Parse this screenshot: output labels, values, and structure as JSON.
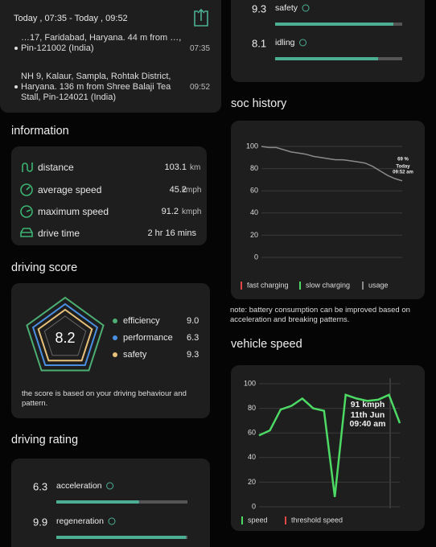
{
  "trip": {
    "time_range": "Today , 07:35 - Today , 09:52",
    "stops": [
      {
        "address": "…17, Faridabad, Haryana. 44 m from …, Pin-121002 (India)",
        "time": "07:35"
      },
      {
        "address": "NH 9, Kalaur, Sampla, Rohtak District, Haryana. 136 m from Shree Balaji Tea Stall, Pin-124021 (India)",
        "time": "09:52"
      }
    ]
  },
  "information": {
    "title": "information",
    "rows": [
      {
        "label": "distance",
        "value": "103.1",
        "unit": "km"
      },
      {
        "label": "average speed",
        "value": "45.2",
        "unit": "kmph"
      },
      {
        "label": "maximum speed",
        "value": "91.2",
        "unit": "kmph"
      },
      {
        "label": "drive time",
        "value": "2 hr 16 mins"
      }
    ]
  },
  "driving_score": {
    "title": "driving score",
    "score": "8.2",
    "items": [
      {
        "name": "efficiency",
        "value": "9.0",
        "color": "#4caf73"
      },
      {
        "name": "performance",
        "value": "6.3",
        "color": "#4a90e2"
      },
      {
        "name": "safety",
        "value": "9.3",
        "color": "#e8c17a"
      }
    ],
    "note": "the score is based on your driving behaviour and pattern."
  },
  "driving_rating": {
    "title": "driving rating",
    "range": [
      0,
      10
    ],
    "color": "#4caf93",
    "items": [
      {
        "name": "safety",
        "value": 9.3
      },
      {
        "name": "idling",
        "value": 8.1
      },
      {
        "name": "acceleration",
        "value": 6.3
      },
      {
        "name": "regeneration",
        "value": 9.9
      }
    ]
  },
  "soc_history": {
    "title": "soc history",
    "type": "line",
    "color": "#8a8a8a",
    "ylim": [
      0,
      100
    ],
    "yticks": [
      0,
      20,
      40,
      60,
      80,
      100
    ],
    "values": [
      100,
      99,
      99,
      97,
      95,
      94,
      93,
      91,
      90,
      89,
      88,
      88,
      87,
      86,
      85,
      82,
      78,
      74,
      71,
      69
    ],
    "annotation": [
      "69 %",
      "Today",
      "09:52 am"
    ],
    "legend": [
      {
        "name": "fast charging",
        "color": "#e04848"
      },
      {
        "name": "slow charging",
        "color": "#4cd964"
      },
      {
        "name": "usage",
        "color": "#8a8a8a"
      }
    ],
    "note": "note: battery consumption can be improved based on acceleration and breaking patterns."
  },
  "vehicle_speed": {
    "title": "vehicle speed",
    "type": "line",
    "color": "#4cd964",
    "ylim": [
      0,
      100
    ],
    "yticks": [
      0,
      20,
      40,
      60,
      80,
      100
    ],
    "values": [
      58,
      62,
      79,
      82,
      88,
      80,
      78,
      8,
      91,
      88,
      86,
      87,
      91,
      68
    ],
    "annotation": [
      "91 kmph",
      "11th Jun",
      "09:40 am"
    ],
    "legend": [
      {
        "name": "speed",
        "color": "#4cd964"
      },
      {
        "name": "threshold speed",
        "color": "#e04848"
      }
    ]
  }
}
